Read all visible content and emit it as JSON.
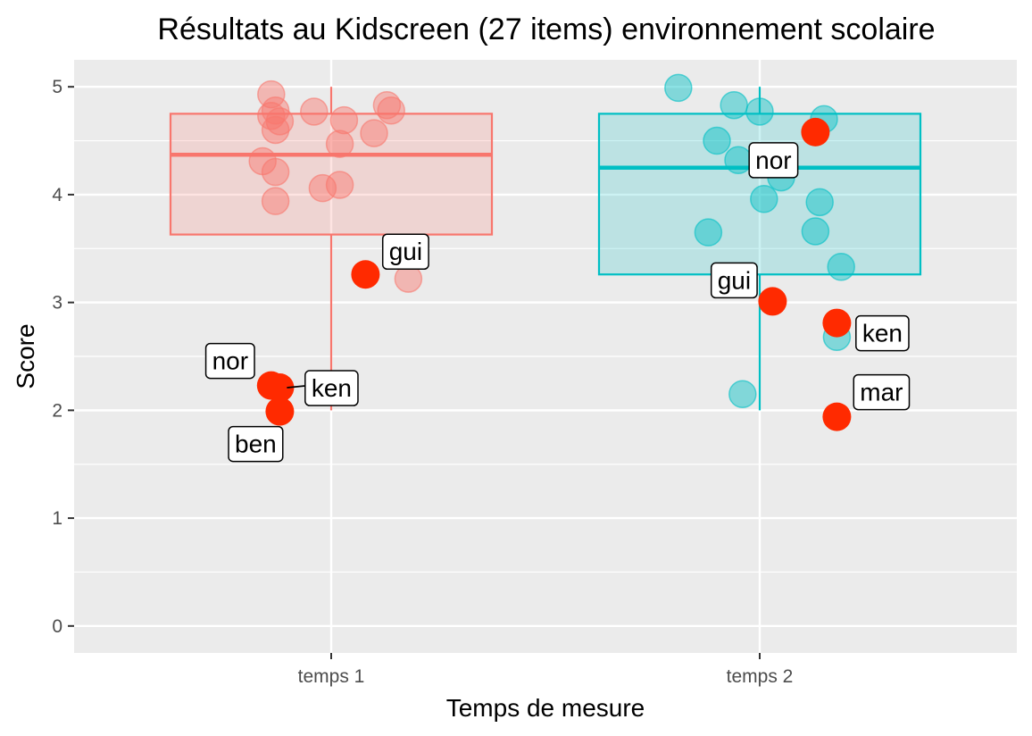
{
  "chart_data": {
    "type": "scatter",
    "title": "Résultats au Kidscreen (27 items) environnement scolaire",
    "xlabel": "Temps de mesure",
    "ylabel": "Score",
    "ylim": [
      -0.25,
      5.25
    ],
    "yticks": [
      0,
      1,
      2,
      3,
      4,
      5
    ],
    "categories": [
      "temps 1",
      "temps 2"
    ],
    "grid": true,
    "colors": {
      "panel": "#ebebeb",
      "grid": "#ffffff",
      "highlight": "#ff2a00",
      "groups": [
        "#f8766d",
        "#00bfc4"
      ]
    },
    "boxplots": [
      {
        "category": "temps 1",
        "whisker_low": 2.0,
        "q1": 3.63,
        "median": 4.37,
        "q3": 4.75,
        "whisker_high": 5.0
      },
      {
        "category": "temps 2",
        "whisker_low": 2.0,
        "q1": 3.26,
        "median": 4.25,
        "q3": 4.75,
        "whisker_high": 5.0
      }
    ],
    "series": [
      {
        "category": "temps 1",
        "points": [
          {
            "x": 0.86,
            "y": 4.93
          },
          {
            "x": 0.87,
            "y": 4.78
          },
          {
            "x": 0.86,
            "y": 4.73
          },
          {
            "x": 0.88,
            "y": 4.68
          },
          {
            "x": 0.87,
            "y": 4.6
          },
          {
            "x": 0.96,
            "y": 4.77
          },
          {
            "x": 1.03,
            "y": 4.69
          },
          {
            "x": 1.02,
            "y": 4.47
          },
          {
            "x": 1.13,
            "y": 4.83
          },
          {
            "x": 1.14,
            "y": 4.78
          },
          {
            "x": 1.1,
            "y": 4.57
          },
          {
            "x": 0.84,
            "y": 4.31
          },
          {
            "x": 0.87,
            "y": 4.21
          },
          {
            "x": 0.98,
            "y": 4.06
          },
          {
            "x": 1.02,
            "y": 4.09
          },
          {
            "x": 0.87,
            "y": 3.94
          },
          {
            "x": 1.18,
            "y": 3.22
          }
        ]
      },
      {
        "category": "temps 2",
        "points": [
          {
            "x": 1.81,
            "y": 4.99
          },
          {
            "x": 1.94,
            "y": 4.83
          },
          {
            "x": 2.0,
            "y": 4.77
          },
          {
            "x": 2.15,
            "y": 4.7
          },
          {
            "x": 1.9,
            "y": 4.5
          },
          {
            "x": 1.95,
            "y": 4.32
          },
          {
            "x": 2.05,
            "y": 4.16
          },
          {
            "x": 2.01,
            "y": 3.96
          },
          {
            "x": 2.14,
            "y": 3.93
          },
          {
            "x": 1.88,
            "y": 3.65
          },
          {
            "x": 2.13,
            "y": 3.66
          },
          {
            "x": 2.19,
            "y": 3.33
          },
          {
            "x": 1.95,
            "y": 3.21
          },
          {
            "x": 2.18,
            "y": 2.68
          },
          {
            "x": 1.96,
            "y": 2.15
          }
        ]
      }
    ],
    "highlighted": [
      {
        "label": "gui",
        "category": "temps 1",
        "x": 1.08,
        "y": 3.26
      },
      {
        "label": "nor",
        "category": "temps 1",
        "x": 0.86,
        "y": 2.23
      },
      {
        "label": "ken",
        "category": "temps 1",
        "x": 0.88,
        "y": 2.21
      },
      {
        "label": "ben",
        "category": "temps 1",
        "x": 0.88,
        "y": 1.99
      },
      {
        "label": "nor",
        "category": "temps 2",
        "x": 2.13,
        "y": 4.58
      },
      {
        "label": "gui",
        "category": "temps 2",
        "x": 2.03,
        "y": 3.01
      },
      {
        "label": "ken",
        "category": "temps 2",
        "x": 2.18,
        "y": 2.81
      },
      {
        "label": "mar",
        "category": "temps 2",
        "x": 2.18,
        "y": 1.94
      }
    ]
  }
}
